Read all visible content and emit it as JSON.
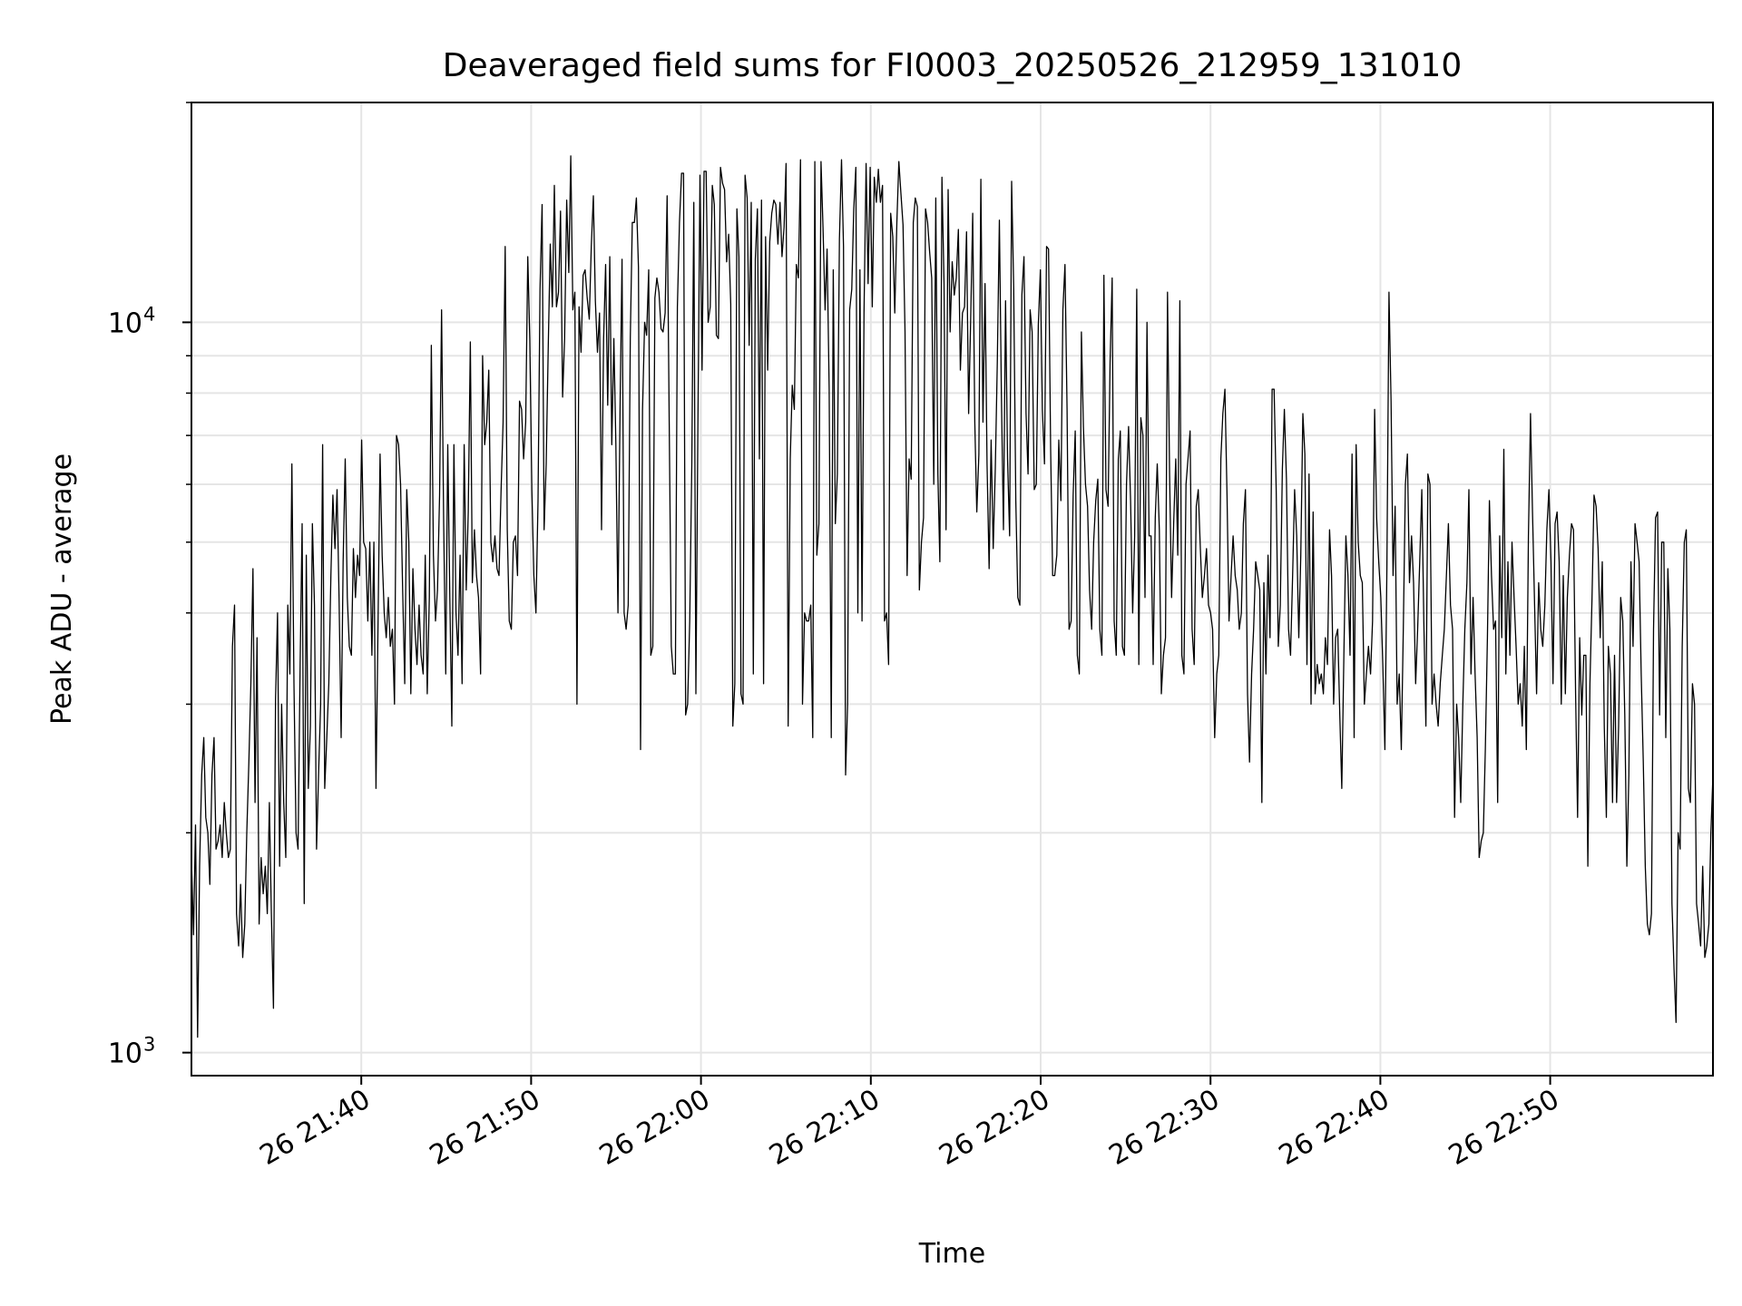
{
  "chart_data": {
    "type": "line",
    "title": "Deaveraged field sums for FI0003_20250526_212959_131010",
    "xlabel": "Time",
    "ylabel": "Peak ADU - average",
    "yscale": "log",
    "grid": true,
    "legend": "none",
    "line_color": "#000000",
    "xlim": [
      "2025-05-26T21:30:00",
      "2025-05-26T22:59:35"
    ],
    "ylim": [
      930,
      20000
    ],
    "x_ticks": [
      "26 21:40",
      "26 21:50",
      "26 22:00",
      "26 22:10",
      "26 22:20",
      "26 22:30",
      "26 22:40",
      "26 22:50"
    ],
    "y_ticks": [
      {
        "base": "10",
        "exp": "3",
        "value": 1000
      },
      {
        "base": "10",
        "exp": "4",
        "value": 10000
      }
    ],
    "series": [
      {
        "x_start": "2025-05-26T21:30:00",
        "x_end": "2025-05-26T22:59:35",
        "values": [
          1850,
          1450,
          2050,
          1050,
          1800,
          2400,
          2700,
          2100,
          2000,
          1700,
          2400,
          2700,
          1900,
          1950,
          2050,
          1850,
          2200,
          2000,
          1850,
          1900,
          3600,
          4100,
          1550,
          1400,
          1700,
          1350,
          1500,
          2000,
          2500,
          3200,
          4600,
          2200,
          3700,
          1500,
          1850,
          1650,
          1800,
          1550,
          2200,
          1550,
          1150,
          3050,
          4000,
          1800,
          3000,
          2200,
          1850,
          4100,
          3300,
          6400,
          3200,
          2000,
          1900,
          3400,
          5300,
          1600,
          4800,
          2300,
          2800,
          5300,
          4100,
          1900,
          2400,
          3000,
          6800,
          2300,
          2700,
          3200,
          4500,
          5800,
          4900,
          5900,
          4200,
          2700,
          4700,
          6500,
          4200,
          3600,
          3500,
          4900,
          4200,
          4800,
          4500,
          6900,
          5000,
          4900,
          3900,
          5000,
          3500,
          5000,
          2300,
          3900,
          6600,
          4800,
          4000,
          3700,
          4200,
          3600,
          3800,
          3000,
          7000,
          6800,
          6000,
          4300,
          3200,
          5900,
          5000,
          3100,
          4600,
          3800,
          3400,
          4100,
          3500,
          3300,
          4800,
          3100,
          4200,
          9300,
          4800,
          3900,
          4300,
          5800,
          10400,
          5300,
          3300,
          6800,
          4200,
          2800,
          6800,
          4000,
          3500,
          4800,
          3200,
          6800,
          4300,
          5500,
          9400,
          4400,
          5200,
          4500,
          4200,
          3300,
          9000,
          6800,
          7300,
          8600,
          5000,
          4700,
          5100,
          4600,
          4500,
          5900,
          7300,
          12700,
          5200,
          3900,
          3800,
          5000,
          5100,
          4500,
          7800,
          7600,
          6500,
          7300,
          12300,
          9500,
          5900,
          4500,
          4000,
          5700,
          11100,
          14500,
          5200,
          6400,
          9300,
          12800,
          10500,
          15400,
          10500,
          11000,
          14200,
          7900,
          9500,
          14700,
          11700,
          16900,
          10400,
          11000,
          3000,
          10500,
          9100,
          11600,
          11800,
          10800,
          10100,
          12700,
          14900,
          10700,
          9100,
          10300,
          5200,
          9500,
          12000,
          7700,
          12300,
          6800,
          9500,
          6800,
          4000,
          7600,
          12200,
          4000,
          3800,
          4100,
          9500,
          13700,
          13700,
          14800,
          11900,
          2600,
          7600,
          10000,
          9600,
          11800,
          3500,
          3600,
          10800,
          11500,
          11000,
          9800,
          9700,
          10300,
          14900,
          7300,
          3600,
          3300,
          3300,
          10500,
          13700,
          16000,
          16000,
          2900,
          3000,
          3900,
          6400,
          14600,
          3100,
          7200,
          15900,
          8600,
          16100,
          16100,
          10000,
          10500,
          15400,
          14500,
          9600,
          9500,
          16300,
          15500,
          15200,
          12100,
          13200,
          10600,
          2800,
          3200,
          14300,
          12300,
          3100,
          3000,
          15900,
          14800,
          9300,
          14600,
          3300,
          12200,
          14300,
          6500,
          14700,
          3200,
          13100,
          8600,
          12900,
          14100,
          14700,
          14500,
          12800,
          14600,
          12300,
          13500,
          16500,
          2800,
          6500,
          8200,
          7600,
          12000,
          11500,
          16700,
          3000,
          4000,
          3900,
          3900,
          4100,
          2700,
          16600,
          4800,
          5300,
          16600,
          13500,
          10400,
          12600,
          8100,
          2700,
          11800,
          5300,
          6200,
          13000,
          16700,
          12700,
          2400,
          3000,
          10400,
          11100,
          14300,
          16300,
          4000,
          11800,
          3900,
          10300,
          16500,
          11300,
          16300,
          10500,
          15800,
          14600,
          16200,
          14600,
          15400,
          3900,
          4000,
          3400,
          14100,
          13100,
          10300,
          13700,
          16600,
          15000,
          13600,
          9700,
          4500,
          6500,
          6100,
          13700,
          14800,
          14400,
          4300,
          5000,
          5400,
          14300,
          13700,
          12500,
          11500,
          6000,
          14800,
          6200,
          4700,
          15800,
          11300,
          5200,
          15200,
          9700,
          12100,
          10900,
          11500,
          13400,
          8600,
          10300,
          10500,
          13300,
          7500,
          10000,
          14100,
          7300,
          5500,
          6600,
          15700,
          7300,
          11300,
          6400,
          4600,
          6900,
          4900,
          6300,
          8800,
          13800,
          8000,
          5200,
          10700,
          6500,
          5100,
          15600,
          11100,
          5700,
          4200,
          4100,
          10900,
          12300,
          7500,
          6200,
          10400,
          9700,
          5900,
          6000,
          9900,
          11800,
          7600,
          6400,
          12700,
          12600,
          6700,
          4500,
          4500,
          4800,
          6900,
          5700,
          10400,
          12000,
          7600,
          3800,
          3900,
          5800,
          7100,
          3500,
          3300,
          9700,
          7200,
          6000,
          5600,
          4300,
          3800,
          5000,
          5700,
          6100,
          3800,
          3500,
          11600,
          5900,
          5600,
          8800,
          11500,
          3900,
          3500,
          6500,
          7100,
          3600,
          3500,
          6000,
          7200,
          5700,
          4000,
          5100,
          11100,
          3400,
          7400,
          7000,
          4200,
          10000,
          5100,
          5100,
          3400,
          5400,
          6400,
          5200,
          3100,
          3500,
          3700,
          11000,
          6200,
          4200,
          5300,
          6500,
          4800,
          10700,
          3500,
          3300,
          6000,
          6500,
          7100,
          3800,
          3400,
          5600,
          5900,
          4900,
          4200,
          4500,
          4900,
          4100,
          4000,
          3800,
          2700,
          3300,
          3500,
          6500,
          7500,
          8100,
          5800,
          3900,
          4500,
          5100,
          4500,
          4300,
          3800,
          4000,
          5300,
          5900,
          3100,
          2500,
          3300,
          3800,
          4700,
          4500,
          4300,
          2200,
          4400,
          3300,
          4800,
          3700,
          8100,
          8100,
          5900,
          3600,
          4100,
          6300,
          7600,
          6100,
          3800,
          3500,
          4500,
          5900,
          5100,
          3700,
          4800,
          7500,
          6600,
          3400,
          6200,
          3000,
          5500,
          3100,
          3400,
          3200,
          3300,
          3100,
          3700,
          3400,
          5200,
          4500,
          3000,
          3700,
          3800,
          2900,
          2300,
          3500,
          5100,
          4500,
          3500,
          6600,
          2700,
          6800,
          5000,
          4500,
          4400,
          3000,
          3300,
          3600,
          3300,
          3900,
          7600,
          5400,
          4700,
          4200,
          3400,
          2600,
          4600,
          11000,
          7800,
          4500,
          5600,
          3000,
          3300,
          2600,
          3800,
          6000,
          6600,
          4400,
          5100,
          4400,
          3200,
          3800,
          4700,
          5900,
          3900,
          2800,
          6200,
          6000,
          3000,
          3300,
          3000,
          2800,
          3200,
          3500,
          3800,
          4500,
          5300,
          4100,
          3800,
          2100,
          3000,
          2700,
          2200,
          3000,
          3800,
          4400,
          5900,
          3300,
          4200,
          3300,
          2700,
          1850,
          1950,
          2000,
          2600,
          3700,
          5700,
          4500,
          3800,
          3900,
          2200,
          5100,
          3700,
          6700,
          3300,
          4700,
          3500,
          5000,
          4200,
          3600,
          3000,
          3200,
          2800,
          3600,
          2600,
          5100,
          7500,
          5500,
          4100,
          3100,
          4400,
          3800,
          3600,
          4100,
          5200,
          5900,
          4700,
          3200,
          5300,
          5500,
          4700,
          3000,
          4500,
          3100,
          4200,
          4800,
          5300,
          5200,
          3100,
          2100,
          3700,
          2900,
          3500,
          3500,
          1800,
          3200,
          4200,
          5800,
          5600,
          4900,
          3700,
          4700,
          2800,
          2100,
          3600,
          3300,
          2200,
          3500,
          2200,
          2800,
          4200,
          3900,
          2900,
          1800,
          2400,
          4700,
          3600,
          5300,
          5000,
          4700,
          3300,
          2500,
          1800,
          1500,
          1450,
          1550,
          3800,
          5400,
          5500,
          2900,
          5000,
          5000,
          2700,
          4600,
          3800,
          1600,
          1300,
          1100,
          2000,
          1900,
          3600,
          5000,
          5200,
          2300,
          2200,
          3200,
          3000,
          1600,
          1500,
          1400,
          1800,
          1350,
          1400,
          1500,
          2000,
          2400
        ]
      }
    ]
  }
}
